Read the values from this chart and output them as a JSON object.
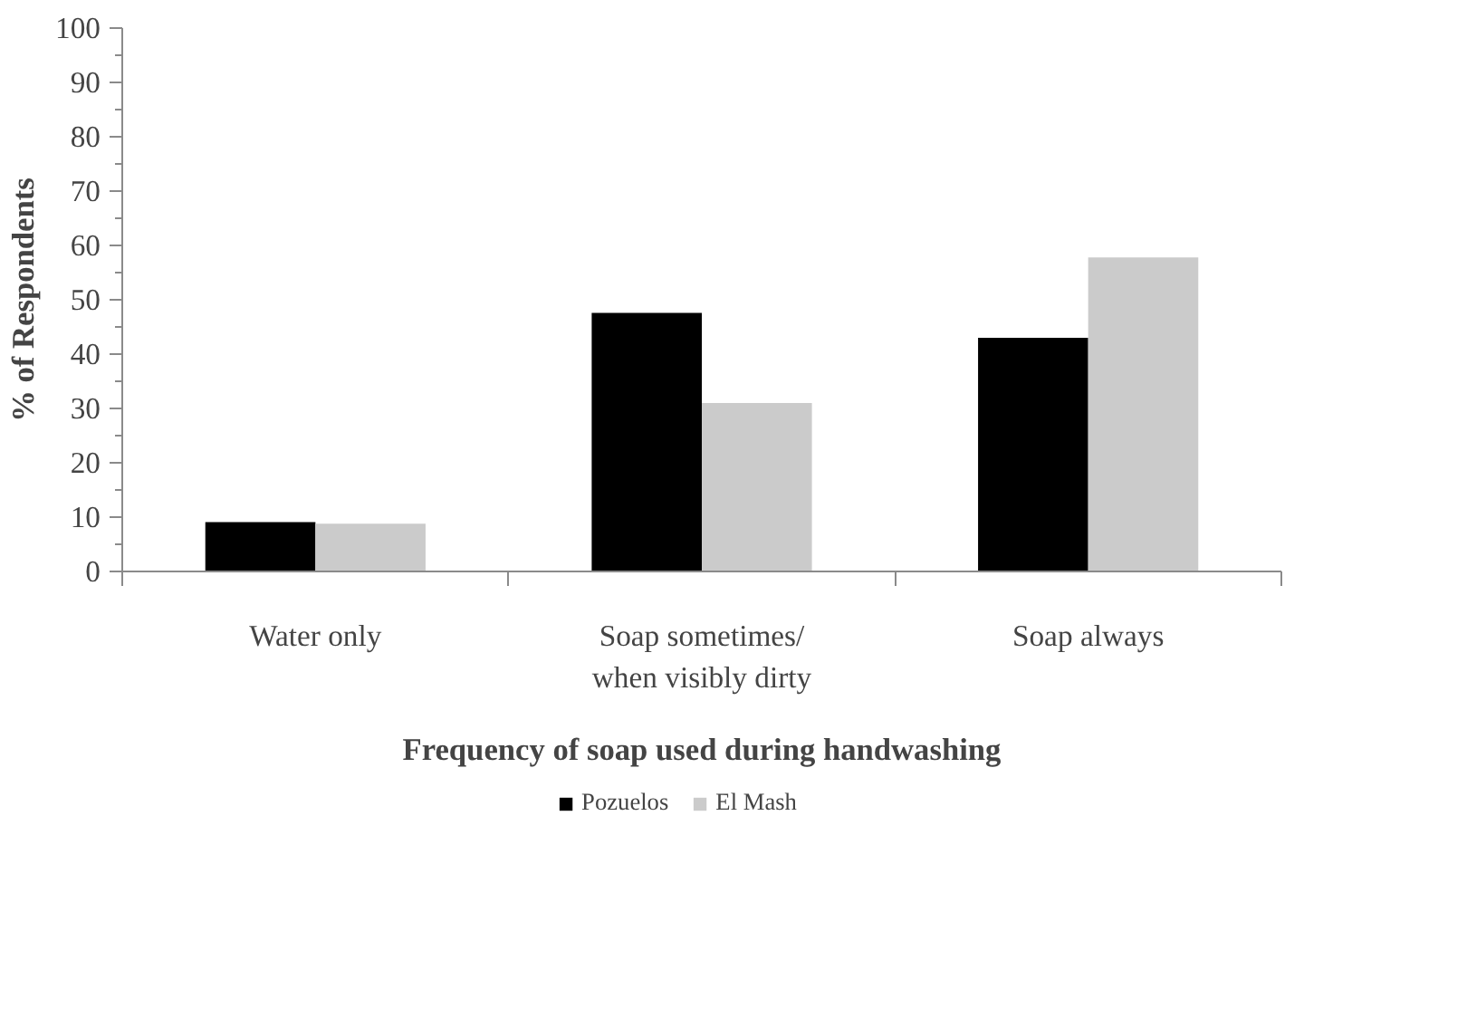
{
  "chart_data": {
    "type": "bar",
    "xlabel": "Frequency of soap used during handwashing",
    "ylabel": "% of Respondents",
    "categories": [
      "Water only",
      "Soap sometimes/\nwhen visibly dirty",
      "Soap always"
    ],
    "series": [
      {
        "name": "Pozuelos",
        "color": "#000000",
        "values": [
          9.1,
          47.6,
          43.0
        ]
      },
      {
        "name": "El Mash",
        "color": "#cbcbcb",
        "values": [
          8.8,
          31.0,
          57.8
        ]
      }
    ],
    "ylim": [
      0,
      100
    ],
    "yticks": [
      0,
      10,
      20,
      30,
      40,
      50,
      60,
      70,
      80,
      90,
      100
    ],
    "grid": false,
    "legend": "bottom"
  }
}
